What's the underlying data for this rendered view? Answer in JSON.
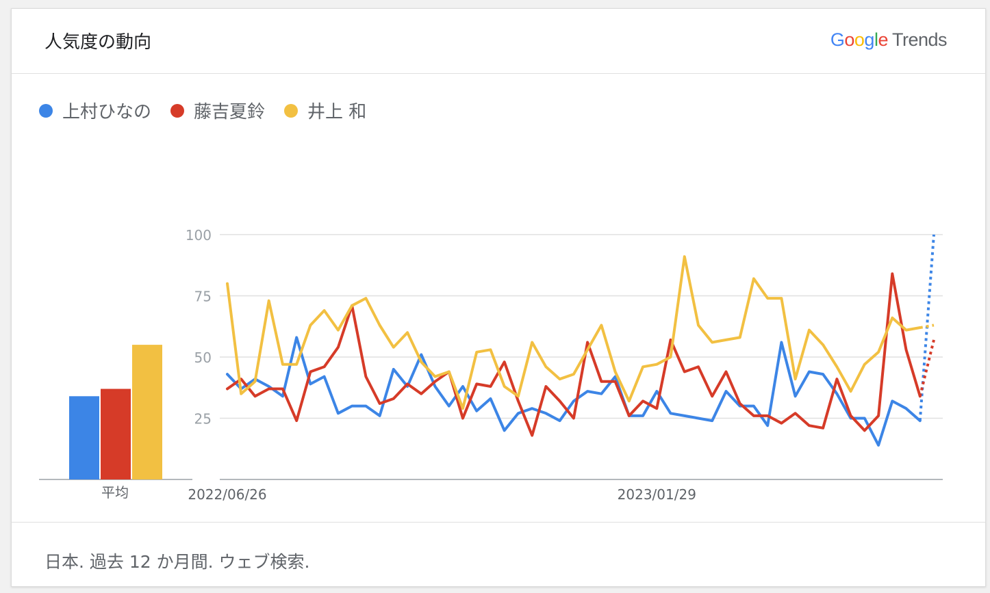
{
  "header": {
    "title": "人気度の動向",
    "brand_google": [
      "G",
      "o",
      "o",
      "g",
      "l",
      "e"
    ],
    "brand_trends": "Trends"
  },
  "legend": [
    {
      "label": "上村ひなの",
      "color": "#3c85e6"
    },
    {
      "label": "藤吉夏鈴",
      "color": "#d63b28"
    },
    {
      "label": "井上 和",
      "color": "#f2c042"
    }
  ],
  "footer": {
    "text": "日本. 過去 12 か月間. ウェブ検索."
  },
  "chart_data": [
    {
      "type": "bar",
      "categories": [
        "平均"
      ],
      "series": [
        {
          "name": "上村ひなの",
          "values": [
            34
          ],
          "color": "#3c85e6"
        },
        {
          "name": "藤吉夏鈴",
          "values": [
            37
          ],
          "color": "#d63b28"
        },
        {
          "name": "井上 和",
          "values": [
            55
          ],
          "color": "#f2c042"
        }
      ],
      "ylim": [
        0,
        100
      ]
    },
    {
      "type": "line",
      "x_tick_labels": [
        "2022/06/26",
        "2023/01/29"
      ],
      "x_tick_index": [
        0,
        31
      ],
      "ylim": [
        0,
        100
      ],
      "yticks": [
        25,
        50,
        75,
        100
      ],
      "grid": true,
      "partial_last_point": true,
      "series": [
        {
          "name": "上村ひなの",
          "color": "#3c85e6",
          "values": [
            43,
            37,
            41,
            38,
            34,
            58,
            39,
            42,
            27,
            30,
            30,
            26,
            45,
            38,
            51,
            38,
            30,
            38,
            28,
            33,
            20,
            27,
            29,
            27,
            24,
            32,
            36,
            35,
            42,
            26,
            26,
            36,
            27,
            26,
            25,
            24,
            36,
            30,
            30,
            22,
            56,
            34,
            44,
            43,
            35,
            25,
            25,
            14,
            32,
            29,
            24,
            100
          ]
        },
        {
          "name": "藤吉夏鈴",
          "color": "#d63b28",
          "values": [
            37,
            41,
            34,
            37,
            37,
            24,
            44,
            46,
            54,
            71,
            42,
            31,
            33,
            39,
            35,
            40,
            44,
            25,
            39,
            38,
            48,
            32,
            18,
            38,
            32,
            25,
            56,
            40,
            40,
            26,
            32,
            29,
            57,
            44,
            46,
            34,
            44,
            31,
            26,
            26,
            23,
            27,
            22,
            21,
            41,
            26,
            20,
            26,
            84,
            53,
            34,
            57
          ]
        },
        {
          "name": "井上 和",
          "color": "#f2c042",
          "values": [
            80,
            35,
            40,
            73,
            47,
            47,
            63,
            69,
            61,
            71,
            74,
            63,
            54,
            60,
            48,
            42,
            44,
            29,
            52,
            53,
            38,
            34,
            56,
            46,
            41,
            43,
            53,
            63,
            44,
            32,
            46,
            47,
            50,
            91,
            63,
            56,
            57,
            58,
            82,
            74,
            74,
            41,
            61,
            55,
            46,
            36,
            47,
            52,
            66,
            61,
            62,
            63
          ]
        }
      ]
    }
  ]
}
